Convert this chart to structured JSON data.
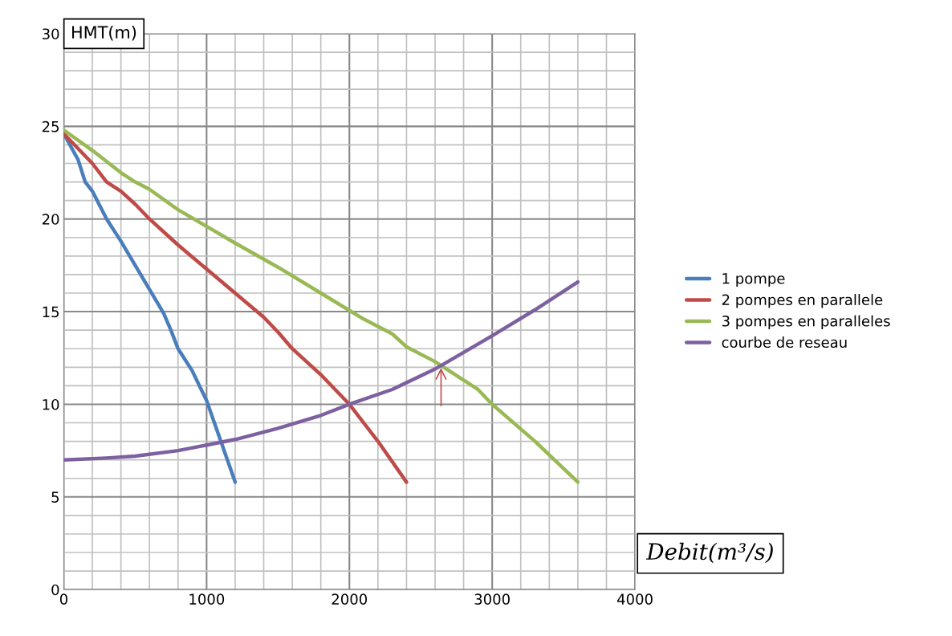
{
  "chart_data": {
    "type": "line",
    "ylabel": "HMT(m)",
    "xlabel": "Debit(m³/s)",
    "xlim": [
      0,
      4000
    ],
    "ylim": [
      0,
      30
    ],
    "xticks": [
      0,
      {
        "value": 200,
        "label": null
      },
      {
        "value": 400,
        "label": null
      },
      {
        "value": 600,
        "label": null
      },
      {
        "value": 800,
        "label": null
      },
      1000,
      {
        "value": 1200,
        "label": null
      },
      {
        "value": 1400,
        "label": null
      },
      {
        "value": 1600,
        "label": null
      },
      {
        "value": 1800,
        "label": null
      },
      2000,
      {
        "value": 2200,
        "label": null
      },
      {
        "value": 2400,
        "label": null
      },
      {
        "value": 2600,
        "label": null
      },
      {
        "value": 2800,
        "label": null
      },
      3000,
      {
        "value": 3200,
        "label": null
      },
      {
        "value": 3400,
        "label": null
      },
      {
        "value": 3600,
        "label": null
      },
      {
        "value": 3800,
        "label": null
      },
      4000
    ],
    "yticks": [
      0,
      {
        "value": 1,
        "label": null
      },
      {
        "value": 2,
        "label": null
      },
      {
        "value": 3,
        "label": null
      },
      {
        "value": 4,
        "label": null
      },
      5,
      {
        "value": 6,
        "label": null
      },
      {
        "value": 7,
        "label": null
      },
      {
        "value": 8,
        "label": null
      },
      {
        "value": 9,
        "label": null
      },
      10,
      {
        "value": 11,
        "label": null
      },
      {
        "value": 12,
        "label": null
      },
      {
        "value": 13,
        "label": null
      },
      {
        "value": 14,
        "label": null
      },
      15,
      {
        "value": 16,
        "label": null
      },
      {
        "value": 17,
        "label": null
      },
      {
        "value": 18,
        "label": null
      },
      {
        "value": 19,
        "label": null
      },
      20,
      {
        "value": 21,
        "label": null
      },
      {
        "value": 22,
        "label": null
      },
      {
        "value": 23,
        "label": null
      },
      {
        "value": 24,
        "label": null
      },
      25,
      {
        "value": 26,
        "label": null
      },
      {
        "value": 27,
        "label": null
      },
      {
        "value": 28,
        "label": null
      },
      {
        "value": 29,
        "label": null
      },
      30
    ],
    "grid": true,
    "legend": "right",
    "marker": "none",
    "line_style": "solid",
    "series": [
      {
        "name": "1 pompe",
        "color": "#4a7ebb",
        "x": [
          0,
          100,
          150,
          200,
          300,
          400,
          500,
          600,
          700,
          750,
          800,
          900,
          1000,
          1100,
          1200
        ],
        "values": [
          24.6,
          23.2,
          22,
          21.5,
          20,
          18.8,
          17.5,
          16.2,
          14.9,
          14,
          13,
          11.8,
          10.2,
          8,
          5.8
        ]
      },
      {
        "name": "2 pompes en parallele",
        "color": "#be4b48",
        "x": [
          0,
          200,
          300,
          400,
          500,
          600,
          800,
          1000,
          1200,
          1400,
          1500,
          1600,
          1800,
          2000,
          2200,
          2400
        ],
        "values": [
          24.6,
          23,
          22,
          21.5,
          20.8,
          20,
          18.6,
          17.3,
          16,
          14.7,
          13.9,
          13,
          11.6,
          10,
          8,
          5.8
        ]
      },
      {
        "name": "3 pompes en paralleles",
        "color": "#98b954",
        "x": [
          0,
          200,
          400,
          500,
          600,
          800,
          1000,
          1200,
          1500,
          1800,
          2100,
          2300,
          2400,
          2600,
          2700,
          2900,
          3000,
          3300,
          3600
        ],
        "values": [
          24.8,
          23.7,
          22.5,
          22,
          21.6,
          20.5,
          19.6,
          18.7,
          17.4,
          16,
          14.6,
          13.8,
          13.1,
          12.3,
          11.8,
          10.8,
          10,
          8,
          5.8
        ]
      },
      {
        "name": "courbe de reseau",
        "color": "#7d60a0",
        "x": [
          0,
          300,
          500,
          800,
          1000,
          1200,
          1500,
          1800,
          2000,
          2300,
          2600,
          3000,
          3300,
          3600
        ],
        "values": [
          7,
          7.1,
          7.2,
          7.5,
          7.8,
          8.1,
          8.7,
          9.4,
          10,
          10.8,
          11.9,
          13.7,
          15.1,
          16.6
        ]
      }
    ]
  }
}
